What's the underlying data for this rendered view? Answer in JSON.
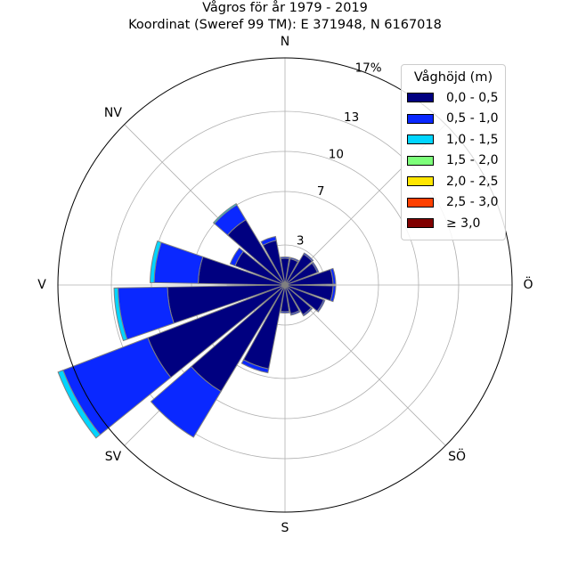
{
  "chart_data": {
    "type": "polar-bar",
    "title": "Vågros för år 1979 - 2019",
    "subtitle": "Koordinat (Sweref 99 TM): E 371948, N 6167018",
    "direction_labels": [
      "N",
      "NV",
      "V",
      "SV",
      "S",
      "SÖ",
      "Ö"
    ],
    "radial_labels": [
      "3",
      "7",
      "10",
      "13",
      "17%"
    ],
    "radial_values": [
      3,
      7,
      10,
      13,
      17
    ],
    "r_max": 17,
    "legend_title": "Våghöjd (m)",
    "bins": [
      {
        "label": "0,0 - 0,5",
        "color": "#000080"
      },
      {
        "label": "0,5 - 1,0",
        "color": "#0a28ff"
      },
      {
        "label": "1,0 - 1,5",
        "color": "#00d5ff"
      },
      {
        "label": "1,5 - 2,0",
        "color": "#7dff7a"
      },
      {
        "label": "2,0 - 2,5",
        "color": "#ffe600"
      },
      {
        "label": "2,5 - 3,0",
        "color": "#ff4000"
      },
      {
        "label": "≥ 3,0",
        "color": "#800000"
      }
    ],
    "sector_width_deg": 18,
    "sectors": [
      {
        "direction_deg": 0,
        "values": [
          2.0,
          0.1,
          0,
          0,
          0,
          0,
          0
        ]
      },
      {
        "direction_deg": 20,
        "values": [
          2.0,
          0.1,
          0,
          0,
          0,
          0,
          0
        ]
      },
      {
        "direction_deg": 40,
        "values": [
          2.7,
          0.1,
          0,
          0,
          0,
          0,
          0
        ]
      },
      {
        "direction_deg": 60,
        "values": [
          2.6,
          0.1,
          0,
          0,
          0,
          0,
          0
        ]
      },
      {
        "direction_deg": 80,
        "values": [
          3.6,
          0.2,
          0,
          0,
          0,
          0,
          0
        ]
      },
      {
        "direction_deg": 100,
        "values": [
          3.6,
          0.2,
          0,
          0,
          0,
          0,
          0
        ]
      },
      {
        "direction_deg": 120,
        "values": [
          3.1,
          0.1,
          0,
          0,
          0,
          0,
          0
        ]
      },
      {
        "direction_deg": 140,
        "values": [
          2.6,
          0.1,
          0,
          0,
          0,
          0,
          0
        ]
      },
      {
        "direction_deg": 160,
        "values": [
          2.2,
          0.1,
          0,
          0,
          0,
          0,
          0
        ]
      },
      {
        "direction_deg": 180,
        "values": [
          2.0,
          0.1,
          0,
          0,
          0,
          0,
          0
        ]
      },
      {
        "direction_deg": 200,
        "values": [
          6.4,
          0.3,
          0,
          0,
          0,
          0,
          0
        ]
      },
      {
        "direction_deg": 220,
        "values": [
          9.3,
          4.0,
          0,
          0,
          0,
          0,
          0
        ]
      },
      {
        "direction_deg": 240,
        "values": [
          11.0,
          6.8,
          0.4,
          0,
          0,
          0,
          0
        ]
      },
      {
        "direction_deg": 260,
        "values": [
          8.8,
          3.7,
          0.3,
          0,
          0,
          0,
          0
        ]
      },
      {
        "direction_deg": 280,
        "values": [
          6.5,
          3.3,
          0.3,
          0,
          0,
          0,
          0
        ]
      },
      {
        "direction_deg": 300,
        "values": [
          4.0,
          0.4,
          0,
          0,
          0,
          0,
          0
        ]
      },
      {
        "direction_deg": 320,
        "values": [
          5.7,
          1.3,
          0.1,
          0,
          0,
          0,
          0
        ]
      },
      {
        "direction_deg": 340,
        "values": [
          3.4,
          0.3,
          0,
          0,
          0,
          0,
          0
        ]
      }
    ],
    "grid": true
  }
}
